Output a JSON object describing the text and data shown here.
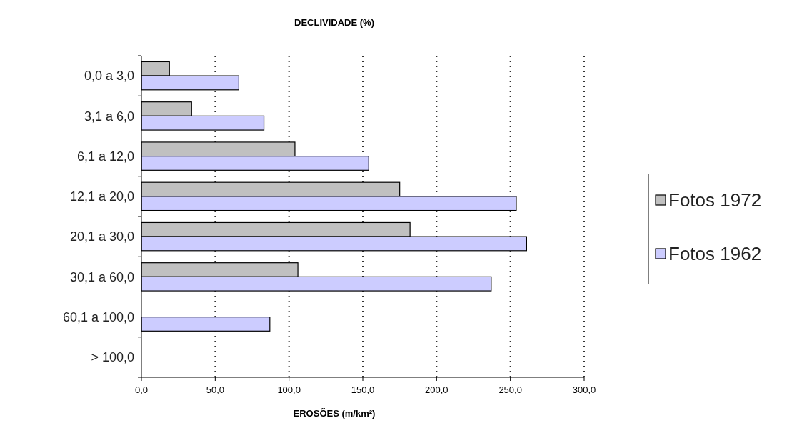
{
  "chart_data": {
    "type": "bar",
    "orientation": "horizontal",
    "title": "DECLIVIDADE (%)",
    "xlabel": "EROSÕES (m/km²)",
    "categories": [
      "0,0 a 3,0",
      "3,1 a 6,0",
      "6,1 a 12,0",
      "12,1 a 20,0",
      "20,1 a 30,0",
      "30,1 a 60,0",
      "60,1 a 100,0",
      "> 100,0"
    ],
    "series": [
      {
        "name": "Fotos 1972",
        "color": "#c0c0c0",
        "values": [
          19,
          34,
          104,
          175,
          182,
          106,
          null,
          null
        ]
      },
      {
        "name": "Fotos 1962",
        "color": "#ccccff",
        "values": [
          66,
          83,
          154,
          254,
          261,
          237,
          87,
          null
        ]
      }
    ],
    "xlim": [
      0,
      300
    ],
    "xticks": [
      {
        "value": 0,
        "label": "0,0"
      },
      {
        "value": 50,
        "label": "50,0"
      },
      {
        "value": 100,
        "label": "100,0"
      },
      {
        "value": 150,
        "label": "150,0"
      },
      {
        "value": 200,
        "label": "200,0"
      },
      {
        "value": 250,
        "label": "250,0"
      },
      {
        "value": 300,
        "label": "300,0"
      }
    ],
    "grid": "x",
    "legend": "right"
  }
}
